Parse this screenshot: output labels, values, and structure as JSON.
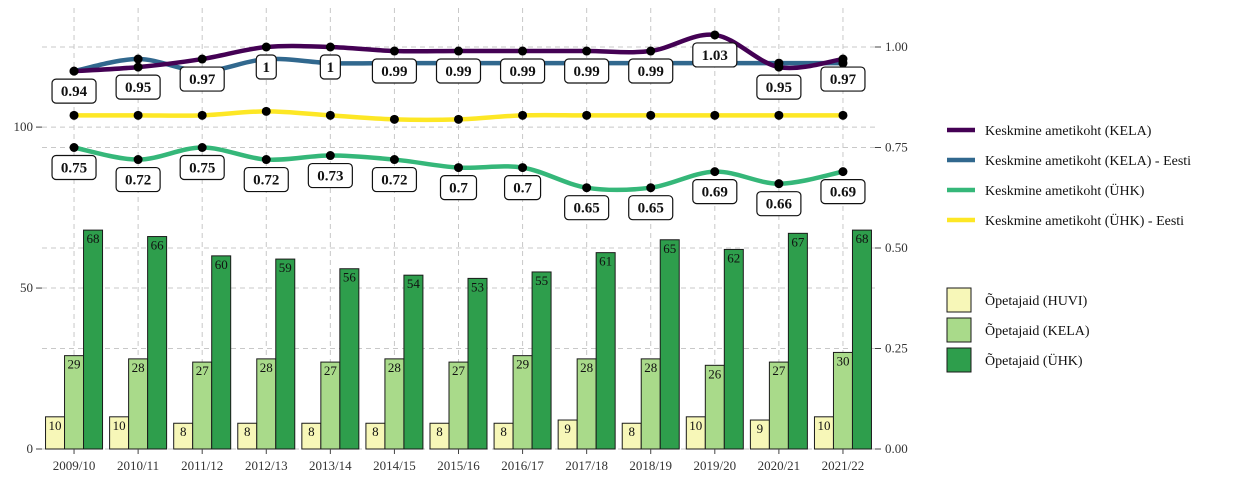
{
  "chart_data": {
    "type": "bar",
    "categories": [
      "2009/10",
      "2010/11",
      "2011/12",
      "2012/13",
      "2013/14",
      "2014/15",
      "2015/16",
      "2016/17",
      "2017/18",
      "2018/19",
      "2019/20",
      "2020/21",
      "2021/22"
    ],
    "bar_series": [
      {
        "name": "Õpetajaid (HUVI)",
        "color": "#f7f7b8",
        "values": [
          10,
          10,
          8,
          8,
          8,
          8,
          8,
          8,
          9,
          8,
          10,
          9,
          10
        ]
      },
      {
        "name": "Õpetajaid (KELA)",
        "color": "#a9da8a",
        "values": [
          29,
          28,
          27,
          28,
          27,
          28,
          27,
          29,
          28,
          28,
          26,
          27,
          30
        ]
      },
      {
        "name": "Õpetajaid (ÜHK)",
        "color": "#2e9e4c",
        "values": [
          68,
          66,
          60,
          59,
          56,
          54,
          53,
          55,
          61,
          65,
          62,
          67,
          68
        ]
      }
    ],
    "line_series": [
      {
        "name": "Keskmine ametikoht (KELA)",
        "color": "#440154",
        "values": [
          0.94,
          0.95,
          0.97,
          1,
          1,
          0.99,
          0.99,
          0.99,
          0.99,
          0.99,
          1.03,
          0.95,
          0.97
        ],
        "labeled": true
      },
      {
        "name": "Keskmine ametikoht (KELA) - Eesti",
        "color": "#31688e",
        "values": [
          0.94,
          0.97,
          0.94,
          0.97,
          0.96,
          0.96,
          0.96,
          0.96,
          0.96,
          0.96,
          0.96,
          0.96,
          0.96
        ],
        "labeled": false
      },
      {
        "name": "Keskmine ametikoht (ÜHK)",
        "color": "#35b779",
        "values": [
          0.75,
          0.72,
          0.75,
          0.72,
          0.73,
          0.72,
          0.7,
          0.7,
          0.65,
          0.65,
          0.69,
          0.66,
          0.69
        ],
        "labeled": true
      },
      {
        "name": "Keskmine ametikoht (ÜHK) - Eesti",
        "color": "#fde725",
        "values": [
          0.83,
          0.83,
          0.83,
          0.84,
          0.83,
          0.82,
          0.82,
          0.83,
          0.83,
          0.83,
          0.83,
          0.83,
          0.83
        ],
        "labeled": false
      }
    ],
    "left_axis": {
      "ticks": [
        0,
        50,
        100
      ],
      "range": [
        0,
        137
      ]
    },
    "right_axis": {
      "ticks": [
        "0.00",
        "0.25",
        "0.50",
        "0.75",
        "1.00"
      ],
      "tick_values": [
        0,
        0.25,
        0.5,
        0.75,
        1.0
      ],
      "range": [
        0,
        1.0
      ]
    },
    "grid": true,
    "legend_position": "right",
    "title": "",
    "xlabel": "",
    "ylabel": ""
  }
}
